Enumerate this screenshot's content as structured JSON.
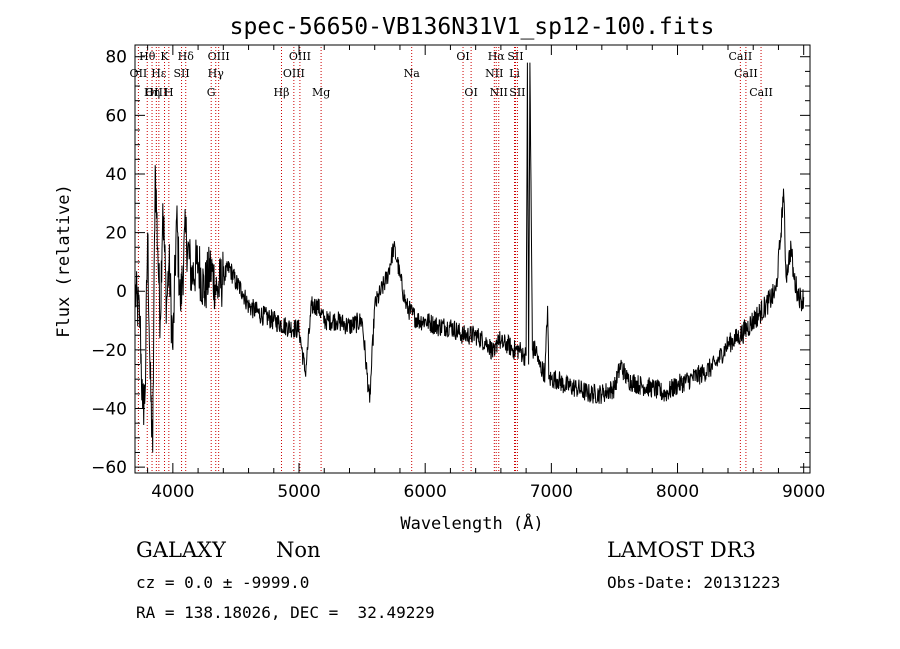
{
  "chart_data": {
    "type": "line",
    "title": "spec-56650-VB136N31V1_sp12-100.fits",
    "xlabel": "Wavelength (Å)",
    "ylabel": "Flux (relative)",
    "xlim": [
      3700,
      9050
    ],
    "ylim": [
      -62,
      84
    ],
    "x_ticks": [
      4000,
      5000,
      6000,
      7000,
      8000,
      9000
    ],
    "y_ticks": [
      -60,
      -40,
      -20,
      0,
      20,
      40,
      60,
      80
    ],
    "grid": false,
    "legend": "none",
    "line_color": "#000000",
    "marker_color": "#cc0000",
    "series": [
      {
        "x": [
          3700,
          3740,
          3760,
          3780,
          3800,
          3820,
          3840,
          3860,
          3880,
          3900,
          3920,
          3950,
          3970,
          4000,
          4030,
          4060,
          4100,
          4150,
          4200,
          4250,
          4300,
          4350,
          4400,
          4450,
          4500,
          4550,
          4600,
          4700,
          4800,
          4900,
          5000,
          5050,
          5100,
          5150,
          5200,
          5300,
          5400,
          5500,
          5560,
          5600,
          5650,
          5700,
          5750,
          5780,
          5800,
          5850,
          5900,
          5950,
          6000,
          6100,
          6200,
          6300,
          6400,
          6500,
          6550,
          6580,
          6600,
          6650,
          6700,
          6750,
          6780,
          6800,
          6810,
          6820,
          6830,
          6850,
          6880,
          6900,
          6950,
          6970,
          6980,
          7000,
          7050,
          7100,
          7200,
          7300,
          7400,
          7500,
          7550,
          7600,
          7700,
          7800,
          7900,
          8000,
          8100,
          8200,
          8300,
          8400,
          8500,
          8600,
          8700,
          8780,
          8820,
          8840,
          8860,
          8880,
          8900,
          8920,
          8950,
          8980,
          9000
        ],
        "y": [
          0,
          -10,
          -40,
          -35,
          20,
          -30,
          -55,
          43,
          15,
          -10,
          30,
          -5,
          10,
          -20,
          25,
          -5,
          20,
          5,
          10,
          0,
          8,
          0,
          5,
          8,
          3,
          0,
          -5,
          -8,
          -10,
          -12,
          -13,
          -28,
          -5,
          -5,
          -10,
          -10,
          -12,
          -10,
          -38,
          -5,
          0,
          5,
          15,
          10,
          5,
          -5,
          -8,
          -10,
          -10,
          -12,
          -12,
          -15,
          -15,
          -18,
          -22,
          -15,
          -18,
          -18,
          -20,
          -20,
          -22,
          -22,
          78,
          -25,
          78,
          -20,
          -20,
          -25,
          -28,
          -5,
          -30,
          -30,
          -30,
          -32,
          -33,
          -35,
          -35,
          -33,
          -25,
          -30,
          -32,
          -33,
          -35,
          -32,
          -30,
          -28,
          -25,
          -18,
          -15,
          -10,
          -5,
          0,
          20,
          35,
          5,
          10,
          15,
          5,
          0,
          -3,
          -2
        ]
      }
    ],
    "line_markers": [
      {
        "label": "Hθ",
        "x": 3797,
        "row": 0
      },
      {
        "label": "OII",
        "x": 3727,
        "row": 1
      },
      {
        "label": "OIII",
        "x": 3869,
        "row": 2
      },
      {
        "label": "Hε",
        "x": 3889,
        "row": 1
      },
      {
        "label": "Hη",
        "x": 3835,
        "row": 2
      },
      {
        "label": "K",
        "x": 3934,
        "row": 0
      },
      {
        "label": "H",
        "x": 3968,
        "row": 2
      },
      {
        "label": "Hδ",
        "x": 4102,
        "row": 0
      },
      {
        "label": "SII",
        "x": 4069,
        "row": 1
      },
      {
        "label": "OIII",
        "x": 4363,
        "row": 0
      },
      {
        "label": "Hγ",
        "x": 4340,
        "row": 1
      },
      {
        "label": "G",
        "x": 4304,
        "row": 2
      },
      {
        "label": "OIII",
        "x": 5007,
        "row": 0
      },
      {
        "label": "OIII",
        "x": 4959,
        "row": 1
      },
      {
        "label": "Hβ",
        "x": 4861,
        "row": 2
      },
      {
        "label": "Mg",
        "x": 5175,
        "row": 2
      },
      {
        "label": "Na",
        "x": 5893,
        "row": 1
      },
      {
        "label": "OI",
        "x": 6300,
        "row": 0
      },
      {
        "label": "OI",
        "x": 6364,
        "row": 2
      },
      {
        "label": "Hα",
        "x": 6563,
        "row": 0
      },
      {
        "label": "SII",
        "x": 6716,
        "row": 0
      },
      {
        "label": "NII",
        "x": 6548,
        "row": 1
      },
      {
        "label": "NII",
        "x": 6583,
        "row": 2
      },
      {
        "label": "Li",
        "x": 6708,
        "row": 1
      },
      {
        "label": "SII",
        "x": 6731,
        "row": 2
      },
      {
        "label": "CaII",
        "x": 8498,
        "row": 0
      },
      {
        "label": "CaII",
        "x": 8542,
        "row": 1
      },
      {
        "label": "CaII",
        "x": 8662,
        "row": 2
      }
    ]
  },
  "footer": {
    "object_class": "GALAXY",
    "object_subclass": "Non",
    "survey": "LAMOST DR3",
    "cz": "cz = 0.0 ± -9999.0",
    "obs_date": "Obs-Date: 20131223",
    "radec": "RA = 138.18026, DEC =  32.49229"
  }
}
